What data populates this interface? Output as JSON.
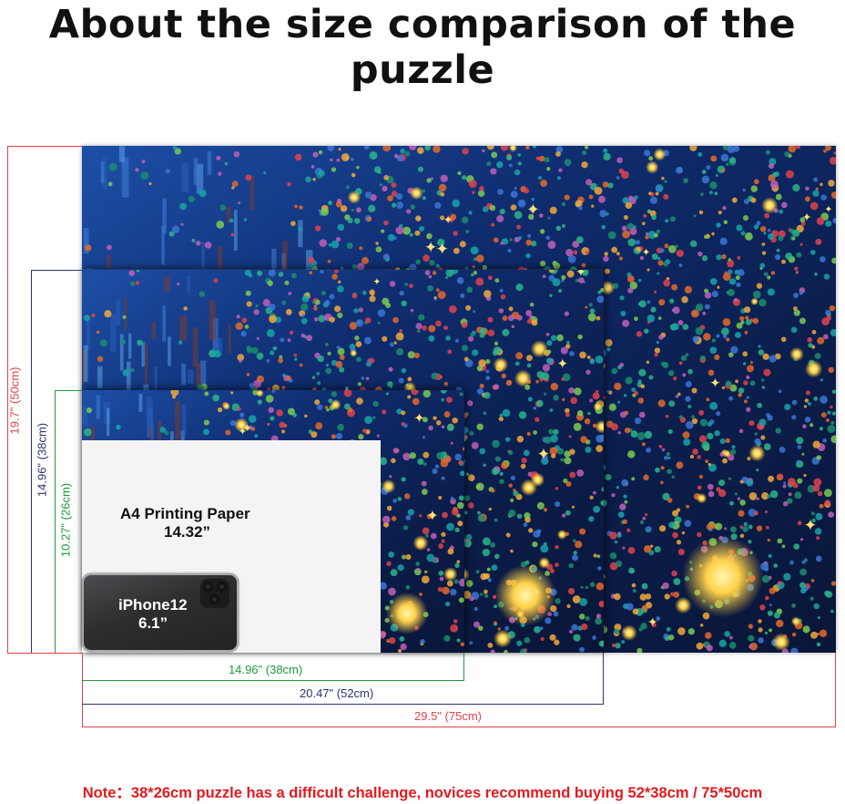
{
  "title": "About the size comparison of the puzzle",
  "sizes": {
    "large": {
      "height": "19.7\" (50cm)",
      "width": "29.5\" (75cm)",
      "color": "#e0424a"
    },
    "medium": {
      "height": "14.96\" (38cm)",
      "width": "20.47\" (52cm)",
      "color": "#2c3470"
    },
    "small": {
      "height": "10.27\" (26cm)",
      "width": "14.96\" (38cm)",
      "color": "#1f9a3c"
    }
  },
  "paper": {
    "label": "A4 Printing Paper",
    "size": "14.32”"
  },
  "phone": {
    "model": "iPhone12",
    "size": "6.1”"
  },
  "note": "Note：38*26cm puzzle has a difficult challenge, novices recommend buying 52*38cm / 75*50cm"
}
